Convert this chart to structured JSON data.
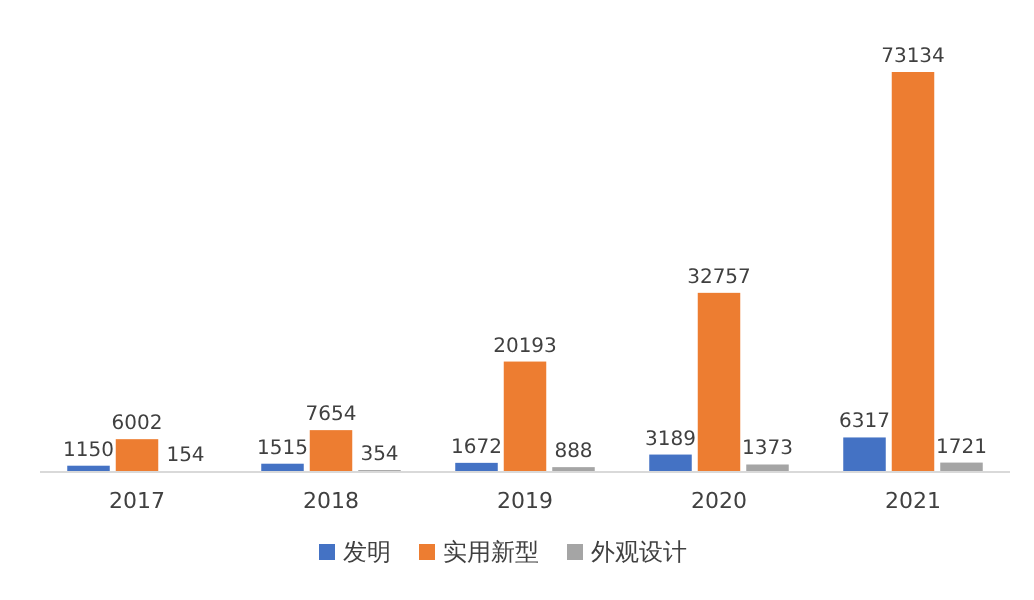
{
  "chart_data": {
    "type": "bar",
    "categories": [
      "2017",
      "2018",
      "2019",
      "2020",
      "2021"
    ],
    "series": [
      {
        "name": "发明",
        "color": "#4472c4",
        "values": [
          1150,
          1515,
          1672,
          3189,
          6317
        ]
      },
      {
        "name": "实用新型",
        "color": "#ed7d31",
        "values": [
          6002,
          7654,
          20193,
          32757,
          73134
        ]
      },
      {
        "name": "外观设计",
        "color": "#a5a5a5",
        "values": [
          154,
          354,
          888,
          1373,
          1721
        ]
      }
    ],
    "data_labels": true,
    "legend": "bottom"
  }
}
